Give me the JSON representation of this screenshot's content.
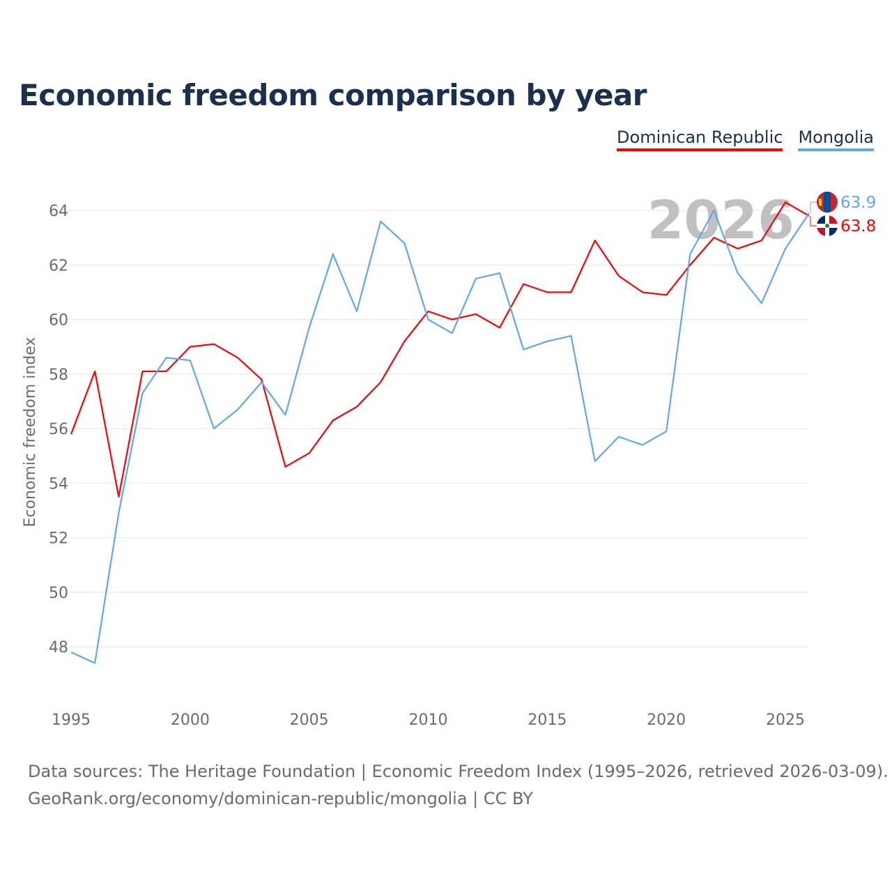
{
  "chart_data": {
    "type": "line",
    "title": "Economic freedom comparison by year",
    "xlabel": "",
    "ylabel": "Economic freedom index",
    "xlim": [
      1995,
      2026
    ],
    "ylim": [
      46.5,
      65
    ],
    "yticks": [
      48,
      50,
      52,
      54,
      56,
      58,
      60,
      62,
      64
    ],
    "xticks": [
      1995,
      2000,
      2005,
      2010,
      2015,
      2020,
      2025
    ],
    "grid": true,
    "legend_position": "top-right",
    "watermark_year": "2026",
    "x": [
      1995,
      1996,
      1997,
      1998,
      1999,
      2000,
      2001,
      2002,
      2003,
      2004,
      2005,
      2006,
      2007,
      2008,
      2009,
      2010,
      2011,
      2012,
      2013,
      2014,
      2015,
      2016,
      2017,
      2018,
      2019,
      2020,
      2021,
      2022,
      2023,
      2024,
      2025,
      2026
    ],
    "series": [
      {
        "name": "Dominican Republic",
        "color": "#ff0000",
        "end_label": "63.8",
        "values": [
          55.8,
          58.1,
          53.5,
          58.1,
          58.1,
          59.0,
          59.1,
          58.6,
          57.8,
          54.6,
          55.1,
          56.3,
          56.8,
          57.7,
          59.2,
          60.3,
          60.0,
          60.2,
          59.7,
          61.3,
          61.0,
          61.0,
          62.9,
          61.6,
          61.0,
          60.9,
          62.0,
          63.0,
          62.6,
          62.9,
          64.3,
          63.8
        ]
      },
      {
        "name": "Mongolia",
        "color": "#5fa8ec",
        "end_label": "63.9",
        "values": [
          47.8,
          47.4,
          52.9,
          57.3,
          58.6,
          58.5,
          56.0,
          56.7,
          57.7,
          56.5,
          59.7,
          62.4,
          60.3,
          63.6,
          62.8,
          60.0,
          59.5,
          61.5,
          61.7,
          58.9,
          59.2,
          59.4,
          54.8,
          55.7,
          55.4,
          55.9,
          62.4,
          64.0,
          61.7,
          60.6,
          62.6,
          63.9
        ]
      }
    ]
  },
  "footer": {
    "line1": "Data sources: The Heritage Foundation | Economic Freedom Index (1995–2026, retrieved 2026-03-09).",
    "line2": "GeoRank.org/economy/dominican-republic/mongolia | CC BY"
  }
}
